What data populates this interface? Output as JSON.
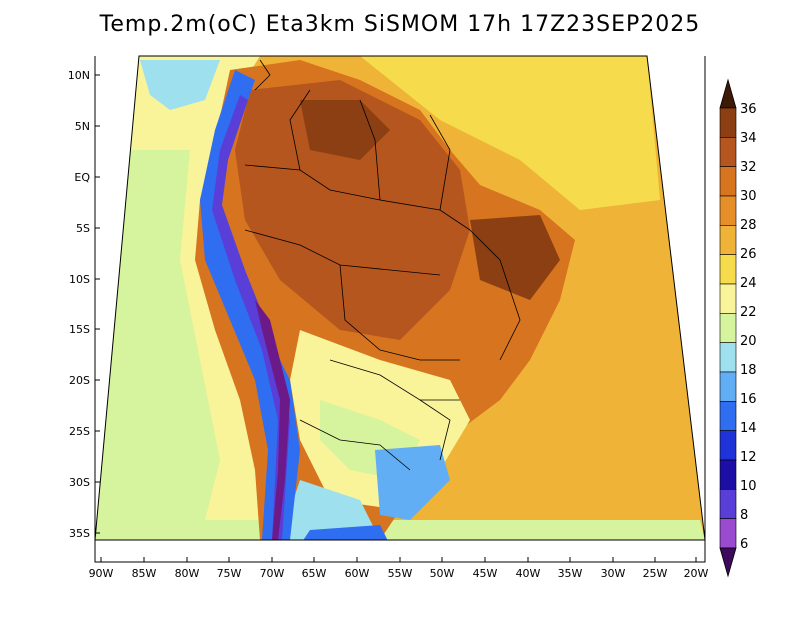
{
  "title": "Temp.2m(oC) Eta3km SiSMOM 17h 17Z23SEP2025",
  "lat_labels": [
    "10N",
    "5N",
    "EQ",
    "5S",
    "10S",
    "15S",
    "20S",
    "25S",
    "30S",
    "35S"
  ],
  "lon_labels": [
    "90W",
    "85W",
    "80W",
    "75W",
    "70W",
    "65W",
    "60W",
    "55W",
    "50W",
    "45W",
    "40W",
    "35W",
    "30W",
    "25W",
    "20W"
  ],
  "colorbar": {
    "labels": [
      "36",
      "34",
      "32",
      "30",
      "28",
      "26",
      "24",
      "22",
      "20",
      "18",
      "16",
      "14",
      "12",
      "10",
      "8",
      "6"
    ],
    "colors": [
      "#5a2708",
      "#8b3f12",
      "#b5561f",
      "#d6741f",
      "#e58e2a",
      "#efb437",
      "#f6dc4c",
      "#f9f39a",
      "#d6f39d",
      "#9fe0ee",
      "#62aef4",
      "#2f6ef0",
      "#1f33d8",
      "#1d0fa6",
      "#5a3ed8",
      "#9a4bcf",
      "#6c1a8a",
      "#3d0a5c"
    ]
  },
  "legend_icons": {
    "top": "arrow-up-icon",
    "bottom": "arrow-down-icon"
  }
}
